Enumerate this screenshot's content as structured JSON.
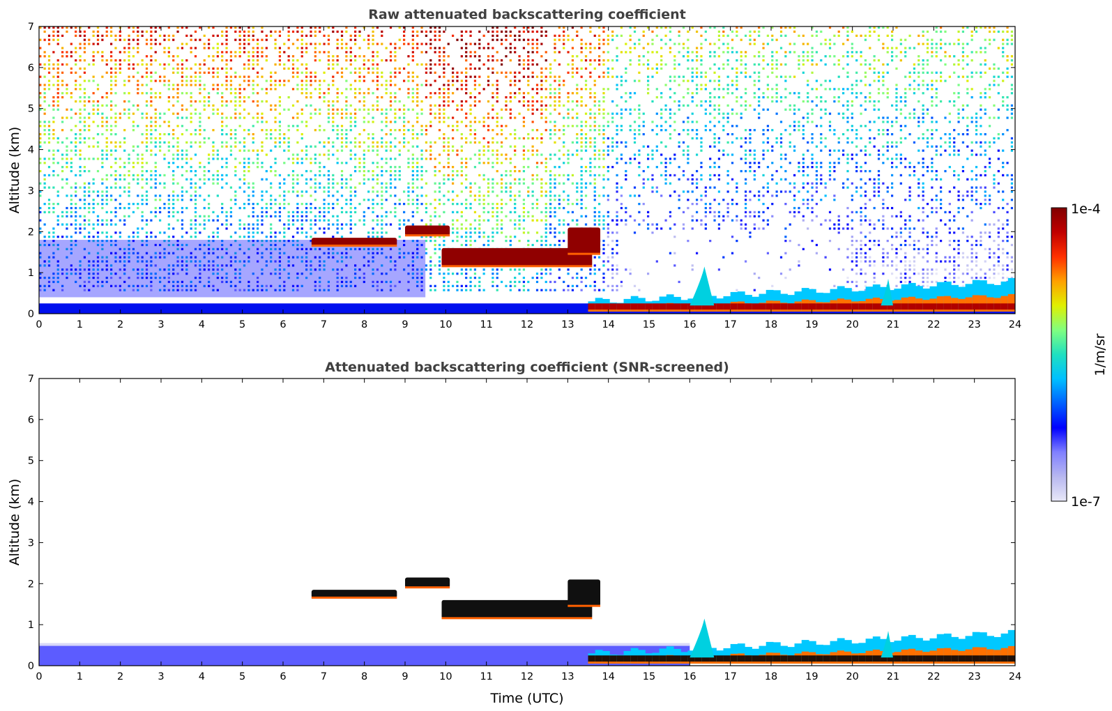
{
  "chart_data": [
    {
      "type": "heatmap",
      "title": "Raw attenuated backscattering coefficient",
      "xlabel": "",
      "ylabel": "Altitude (km)",
      "xlim": [
        0,
        24
      ],
      "ylim": [
        0,
        7
      ],
      "xticks": [
        "0",
        "1",
        "2",
        "3",
        "4",
        "5",
        "6",
        "7",
        "8",
        "9",
        "10",
        "11",
        "12",
        "13",
        "14",
        "15",
        "16",
        "17",
        "18",
        "19",
        "20",
        "21",
        "22",
        "23",
        "24"
      ],
      "yticks": [
        "0",
        "1",
        "2",
        "3",
        "4",
        "5",
        "6",
        "7"
      ],
      "screened": false,
      "features": [
        {
          "kind": "noise",
          "from_km": 0.5,
          "to_km": 7,
          "description": "signal noise increasing with altitude"
        },
        {
          "kind": "surface_layer",
          "x": [
            0,
            24
          ],
          "altitude_km": [
            0,
            0.25
          ]
        },
        {
          "kind": "cloud_layer",
          "x": [
            6.7,
            8.8
          ],
          "altitude_km": [
            1.65,
            1.85
          ]
        },
        {
          "kind": "cloud_layer",
          "x": [
            9.9,
            13.6
          ],
          "altitude_km": [
            1.15,
            1.6
          ]
        },
        {
          "kind": "cloud_layer",
          "x": [
            9.0,
            10.1
          ],
          "altitude_km": [
            1.9,
            2.15
          ]
        },
        {
          "kind": "cloud_layer",
          "x": [
            13.0,
            13.8
          ],
          "altitude_km": [
            1.45,
            2.1
          ]
        },
        {
          "kind": "boundary_layer",
          "x": [
            13.5,
            24
          ],
          "altitude_km": [
            0.05,
            0.9
          ]
        },
        {
          "kind": "plume",
          "x": [
            16.0,
            16.6
          ],
          "altitude_km": [
            0.2,
            1.15
          ]
        },
        {
          "kind": "plume",
          "x": [
            20.7,
            21.0
          ],
          "altitude_km": [
            0.2,
            0.85
          ]
        }
      ]
    },
    {
      "type": "heatmap",
      "title": "Attenuated backscattering coefficient (SNR-screened)",
      "xlabel": "Time (UTC)",
      "ylabel": "Altitude (km)",
      "xlim": [
        0,
        24
      ],
      "ylim": [
        0,
        7
      ],
      "xticks": [
        "0",
        "1",
        "2",
        "3",
        "4",
        "5",
        "6",
        "7",
        "8",
        "9",
        "10",
        "11",
        "12",
        "13",
        "14",
        "15",
        "16",
        "17",
        "18",
        "19",
        "20",
        "21",
        "22",
        "23",
        "24"
      ],
      "yticks": [
        "0",
        "1",
        "2",
        "3",
        "4",
        "5",
        "6",
        "7"
      ],
      "screened": true,
      "features": [
        {
          "kind": "surface_layer",
          "x": [
            0,
            16
          ],
          "altitude_km": [
            0,
            0.5
          ]
        },
        {
          "kind": "cloud_layer",
          "x": [
            6.7,
            8.8
          ],
          "altitude_km": [
            1.65,
            1.85
          ]
        },
        {
          "kind": "cloud_layer",
          "x": [
            9.9,
            13.6
          ],
          "altitude_km": [
            1.15,
            1.6
          ]
        },
        {
          "kind": "cloud_layer",
          "x": [
            9.0,
            10.1
          ],
          "altitude_km": [
            1.9,
            2.15
          ]
        },
        {
          "kind": "cloud_layer",
          "x": [
            13.0,
            13.8
          ],
          "altitude_km": [
            1.45,
            2.1
          ]
        },
        {
          "kind": "boundary_layer",
          "x": [
            13.5,
            24
          ],
          "altitude_km": [
            0.05,
            0.9
          ]
        },
        {
          "kind": "plume",
          "x": [
            16.0,
            16.6
          ],
          "altitude_km": [
            0.2,
            1.15
          ]
        },
        {
          "kind": "plume",
          "x": [
            20.7,
            21.0
          ],
          "altitude_km": [
            0.2,
            0.85
          ]
        }
      ]
    }
  ],
  "colorbar": {
    "label": "1/m/sr",
    "max_label": "1e-4",
    "min_label": "1e-7",
    "scale": "log",
    "range": [
      1e-07,
      0.0001
    ],
    "colormap": [
      "#e8e8f8",
      "#b8b8f0",
      "#8080ff",
      "#0000ff",
      "#0060ff",
      "#00c0ff",
      "#20e0c0",
      "#80ff80",
      "#e0f000",
      "#ffa000",
      "#ff3000",
      "#c00000",
      "#800000"
    ]
  }
}
